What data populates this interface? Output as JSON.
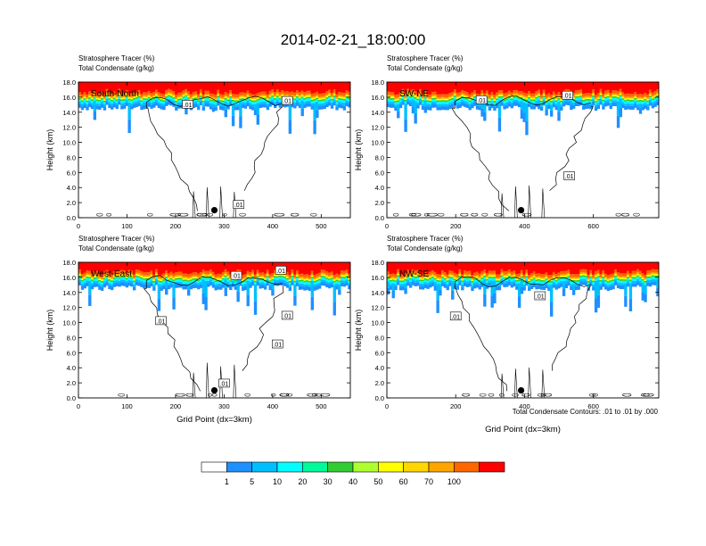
{
  "figure": {
    "title": "2014-02-21_18:00:00",
    "contour_note": "Total Condensate Contours: .01 to .01 by .000",
    "colorbar": {
      "levels": [
        "1",
        "5",
        "10",
        "20",
        "30",
        "40",
        "50",
        "60",
        "70",
        "100"
      ],
      "colors": [
        "#ffffff",
        "#1e90ff",
        "#00bfff",
        "#00ffff",
        "#00fa9a",
        "#32cd32",
        "#adff2f",
        "#ffff00",
        "#ffd700",
        "#ffa500",
        "#ff6600",
        "#ff0000"
      ]
    }
  },
  "chart_data": [
    {
      "type": "heatmap",
      "id": "south-north",
      "panel_label": "South-North",
      "header_line1": "Stratosphere Tracer   (%)",
      "header_line2": "Total Condensate   (g/kg)",
      "ylabel": "Height (km)",
      "xlabel": "",
      "ylim": [
        0,
        18
      ],
      "yticks": [
        "0.0",
        "2.0",
        "4.0",
        "6.0",
        "8.0",
        "10.0",
        "12.0",
        "14.0",
        "16.0",
        "18.0"
      ],
      "xlim": [
        0,
        560
      ],
      "xticks": [
        0,
        100,
        200,
        300,
        400,
        500
      ],
      "tracer_base_km": 14.8,
      "marker_x": 280,
      "contour_labels": [
        {
          "text": ".01",
          "x": 225,
          "y": 15.0
        },
        {
          "text": ".01",
          "x": 430,
          "y": 15.5
        },
        {
          "text": ".01",
          "x": 330,
          "y": 1.7
        }
      ]
    },
    {
      "type": "heatmap",
      "id": "sw-ne",
      "panel_label": "SW-NE",
      "header_line1": "Stratosphere Tracer   (%)",
      "header_line2": "Total Condensate   (g/kg)",
      "ylabel": "Height (km)",
      "xlabel": "",
      "ylim": [
        0,
        18
      ],
      "yticks": [
        "0.0",
        "2.0",
        "4.0",
        "6.0",
        "8.0",
        "10.0",
        "12.0",
        "14.0",
        "16.0",
        "18.0"
      ],
      "xlim": [
        0,
        790
      ],
      "xticks": [
        0,
        200,
        400,
        600
      ],
      "tracer_base_km": 14.8,
      "marker_x": 390,
      "contour_labels": [
        {
          "text": ".01",
          "x": 275,
          "y": 15.6
        },
        {
          "text": ".01",
          "x": 525,
          "y": 16.2
        },
        {
          "text": ".01",
          "x": 530,
          "y": 5.5
        }
      ]
    },
    {
      "type": "heatmap",
      "id": "west-east",
      "panel_label": "West-East",
      "header_line1": "Stratosphere Tracer   (%)",
      "header_line2": "Total Condensate   (g/kg)",
      "ylabel": "Height (km)",
      "xlabel": "Grid Point (dx=3km)",
      "ylim": [
        0,
        18
      ],
      "yticks": [
        "0.0",
        "2.0",
        "4.0",
        "6.0",
        "8.0",
        "10.0",
        "12.0",
        "14.0",
        "16.0",
        "18.0"
      ],
      "xlim": [
        0,
        560
      ],
      "xticks": [
        0,
        100,
        200,
        300,
        400,
        500
      ],
      "tracer_base_km": 14.8,
      "marker_x": 280,
      "contour_labels": [
        {
          "text": ".01",
          "x": 417,
          "y": 16.9
        },
        {
          "text": ".01",
          "x": 325,
          "y": 16.2
        },
        {
          "text": ".01",
          "x": 170,
          "y": 10.2
        },
        {
          "text": ".01",
          "x": 430,
          "y": 10.9
        },
        {
          "text": ".01",
          "x": 410,
          "y": 7.1
        },
        {
          "text": ".01",
          "x": 300,
          "y": 1.9
        }
      ]
    },
    {
      "type": "heatmap",
      "id": "nw-se",
      "panel_label": "NW-SE",
      "header_line1": "Stratosphere Tracer   (%)",
      "header_line2": "Total Condensate   (g/kg)",
      "ylabel": "Height (km)",
      "xlabel": "Grid Point (dx=3km)",
      "ylim": [
        0,
        18
      ],
      "yticks": [
        "0.0",
        "2.0",
        "4.0",
        "6.0",
        "8.0",
        "10.0",
        "12.0",
        "14.0",
        "16.0",
        "18.0"
      ],
      "xlim": [
        0,
        790
      ],
      "xticks": [
        0,
        200,
        400,
        600
      ],
      "tracer_base_km": 14.8,
      "marker_x": 390,
      "contour_labels": [
        {
          "text": ".01",
          "x": 445,
          "y": 13.5
        },
        {
          "text": ".01",
          "x": 200,
          "y": 10.8
        }
      ]
    }
  ]
}
